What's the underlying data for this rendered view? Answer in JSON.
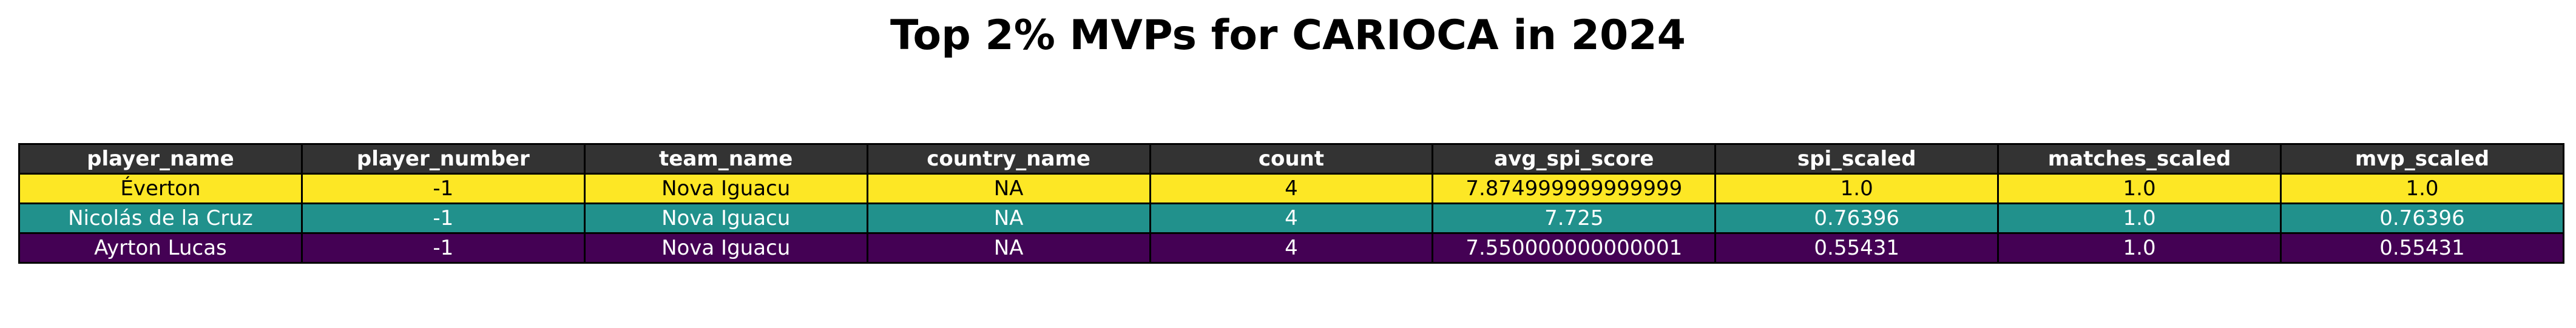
{
  "chart_data": {
    "type": "table",
    "title": "Top 2% MVPs for CARIOCA in 2024",
    "columns": [
      "player_name",
      "player_number",
      "team_name",
      "country_name",
      "count",
      "avg_spi_score",
      "spi_scaled",
      "matches_scaled",
      "mvp_scaled"
    ],
    "rows": [
      {
        "cells": [
          "Éverton",
          "-1",
          "Nova Iguacu",
          "NA",
          "4",
          "7.874999999999999",
          "1.0",
          "1.0",
          "1.0"
        ],
        "bg": "#fde725",
        "fg": "#000000"
      },
      {
        "cells": [
          "Nicolás de la Cruz",
          "-1",
          "Nova Iguacu",
          "NA",
          "4",
          "7.725",
          "0.76396",
          "1.0",
          "0.76396"
        ],
        "bg": "#21918c",
        "fg": "#ffffff"
      },
      {
        "cells": [
          "Ayrton Lucas",
          "-1",
          "Nova Iguacu",
          "NA",
          "4",
          "7.550000000000001",
          "0.55431",
          "1.0",
          "0.55431"
        ],
        "bg": "#440154",
        "fg": "#ffffff"
      }
    ],
    "header_bg": "#333333",
    "header_fg": "#ffffff"
  }
}
